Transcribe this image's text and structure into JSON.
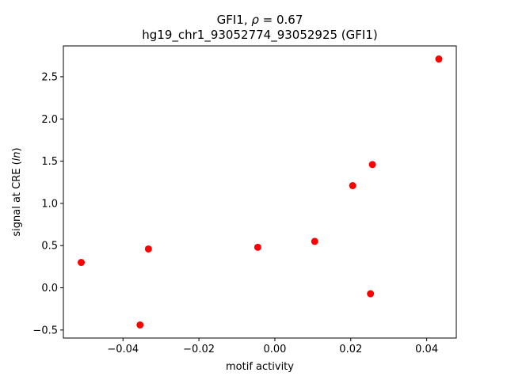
{
  "chart_data": {
    "type": "scatter",
    "title_line1_text": "GFI1, ",
    "title_line1_rho": "ρ",
    "title_line1_rest": " = 0.67",
    "title_line2": "hg19_chr1_93052774_93052925 (GFI1)",
    "xlabel": "motif activity",
    "ylabel_prefix": "signal at CRE (",
    "ylabel_italic": "ln",
    "ylabel_suffix": ")",
    "xlim": [
      -0.0557,
      0.0478
    ],
    "ylim": [
      -0.595,
      2.865
    ],
    "xticks": [
      -0.04,
      -0.02,
      0.0,
      0.02,
      0.04
    ],
    "xtick_labels": [
      "−0.04",
      "−0.02",
      "0.00",
      "0.02",
      "0.04"
    ],
    "yticks": [
      -0.5,
      0.0,
      0.5,
      1.0,
      1.5,
      2.0,
      2.5
    ],
    "ytick_labels": [
      "−0.5",
      "0.0",
      "0.5",
      "1.0",
      "1.5",
      "2.0",
      "2.5"
    ],
    "grid": false,
    "marker_color": "#ff0000",
    "points": [
      {
        "x": -0.051,
        "y": 0.3
      },
      {
        "x": -0.0355,
        "y": -0.44
      },
      {
        "x": -0.0333,
        "y": 0.46
      },
      {
        "x": -0.0045,
        "y": 0.48
      },
      {
        "x": 0.0105,
        "y": 0.55
      },
      {
        "x": 0.0205,
        "y": 1.21
      },
      {
        "x": 0.0252,
        "y": -0.07
      },
      {
        "x": 0.0257,
        "y": 1.46
      },
      {
        "x": 0.0432,
        "y": 2.71
      }
    ]
  }
}
